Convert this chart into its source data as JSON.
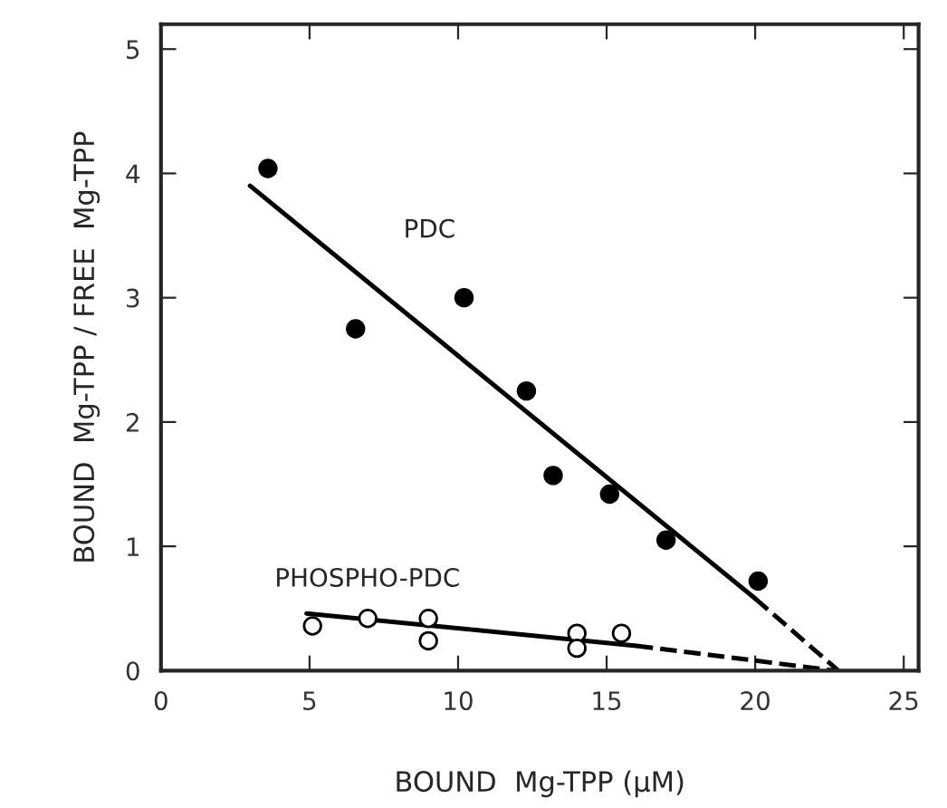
{
  "chart_data": {
    "type": "scatter",
    "xlabel": "BOUND  Mg-TPP (μM)",
    "ylabel": "BOUND  Mg-TPP / FREE  Mg-TPP",
    "xlim": [
      0,
      25.5
    ],
    "ylim": [
      0,
      5.2
    ],
    "xticks": [
      0,
      5,
      10,
      15,
      20,
      25
    ],
    "yticks": [
      0,
      1,
      2,
      3,
      4,
      5
    ],
    "grid": false,
    "series": [
      {
        "marker": "circle",
        "color": "#000000",
        "x": [
          3.6,
          6.55,
          10.2,
          12.3,
          13.2,
          15.1,
          17.0,
          20.1
        ],
        "values": [
          4.04,
          2.75,
          3.0,
          2.25,
          1.57,
          1.42,
          1.05,
          0.72
        ]
      },
      {
        "marker": "circle",
        "color": "#ffffff",
        "x": [
          5.1,
          6.96,
          9.0,
          9.0,
          14.0,
          14.0,
          15.5
        ],
        "values": [
          0.36,
          0.42,
          0.42,
          0.24,
          0.3,
          0.18,
          0.3
        ]
      },
      {
        "type": "line",
        "color": "#000000",
        "line_style": "solid",
        "x": [
          3,
          20
        ],
        "values": [
          3.9,
          0.58
        ]
      },
      {
        "type": "line",
        "color": "#000000",
        "line_style": "dashed",
        "x": [
          20,
          22.8
        ],
        "values": [
          0.58,
          0
        ]
      },
      {
        "type": "line",
        "color": "#000000",
        "line_style": "solid",
        "x": [
          4.9,
          16
        ],
        "values": [
          0.46,
          0.2
        ]
      },
      {
        "type": "line",
        "color": "#000000",
        "line_style": "dashed",
        "x": [
          16,
          22.7
        ],
        "values": [
          0.2,
          0
        ]
      }
    ],
    "annotations": [
      "PDC",
      "PHOSPHO-PDC"
    ]
  }
}
